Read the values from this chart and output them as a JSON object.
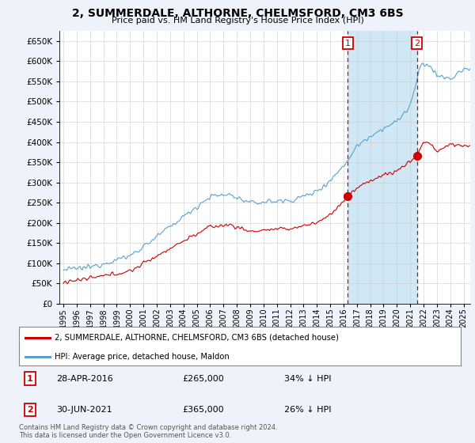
{
  "title": "2, SUMMERDALE, ALTHORNE, CHELMSFORD, CM3 6BS",
  "subtitle": "Price paid vs. HM Land Registry's House Price Index (HPI)",
  "yticks": [
    0,
    50000,
    100000,
    150000,
    200000,
    250000,
    300000,
    350000,
    400000,
    450000,
    500000,
    550000,
    600000,
    650000
  ],
  "ylim": [
    0,
    675000
  ],
  "xlim_start": 1994.7,
  "xlim_end": 2025.5,
  "xticks": [
    1995,
    1996,
    1997,
    1998,
    1999,
    2000,
    2001,
    2002,
    2003,
    2004,
    2005,
    2006,
    2007,
    2008,
    2009,
    2010,
    2011,
    2012,
    2013,
    2014,
    2015,
    2016,
    2017,
    2018,
    2019,
    2020,
    2021,
    2022,
    2023,
    2024,
    2025
  ],
  "hpi_color": "#5aa0d0",
  "hpi_fill_color": "#d0e8f5",
  "sale_color": "#cc0000",
  "vline_color": "#cc0000",
  "purchase1": {
    "date_num": 2016.32,
    "price": 265000,
    "label": "1",
    "date_str": "28-APR-2016",
    "pct": "34% ↓ HPI"
  },
  "purchase2": {
    "date_num": 2021.5,
    "price": 365000,
    "label": "2",
    "date_str": "30-JUN-2021",
    "pct": "26% ↓ HPI"
  },
  "legend_sale_label": "2, SUMMERDALE, ALTHORNE, CHELMSFORD, CM3 6BS (detached house)",
  "legend_hpi_label": "HPI: Average price, detached house, Maldon",
  "footer": "Contains HM Land Registry data © Crown copyright and database right 2024.\nThis data is licensed under the Open Government Licence v3.0.",
  "table_rows": [
    {
      "num": "1",
      "date": "28-APR-2016",
      "price": "£265,000",
      "pct": "34% ↓ HPI"
    },
    {
      "num": "2",
      "date": "30-JUN-2021",
      "price": "£365,000",
      "pct": "26% ↓ HPI"
    }
  ],
  "background_color": "#eef2fa",
  "plot_bg_color": "#ffffff",
  "grid_color": "#cccccc"
}
